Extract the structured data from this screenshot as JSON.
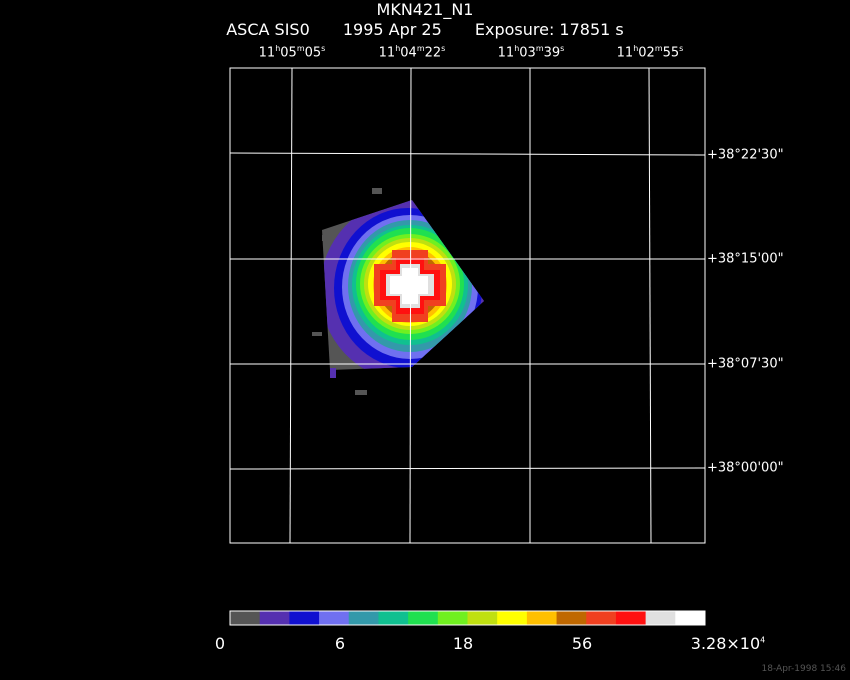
{
  "title": "MKN421_N1",
  "subtitle": {
    "instrument": "ASCA SIS0",
    "date": "1995 Apr 25",
    "exposure": "Exposure: 17851 s"
  },
  "ra_labels": [
    {
      "h": "11",
      "m": "05",
      "s": "05"
    },
    {
      "h": "11",
      "m": "04",
      "s": "22"
    },
    {
      "h": "11",
      "m": "03",
      "s": "39"
    },
    {
      "h": "11",
      "m": "02",
      "s": "55"
    }
  ],
  "dec_labels": [
    "+38°22'30\"",
    "+38°15'00\"",
    "+38°07'30\"",
    "+38°00'00\""
  ],
  "colorbar": {
    "colors": [
      "#555555",
      "#5530b0",
      "#1010d0",
      "#7070f0",
      "#3399aa",
      "#10c090",
      "#20e050",
      "#70f020",
      "#c0e010",
      "#ffff00",
      "#ffc000",
      "#c06800",
      "#f04020",
      "#ff1010",
      "#e0e0e0",
      "#ffffff"
    ],
    "labels": [
      "0",
      "6",
      "18",
      "56"
    ],
    "max_label": "3.28×10",
    "max_exp": "4"
  },
  "footer": "18-Apr-1998 15:46"
}
